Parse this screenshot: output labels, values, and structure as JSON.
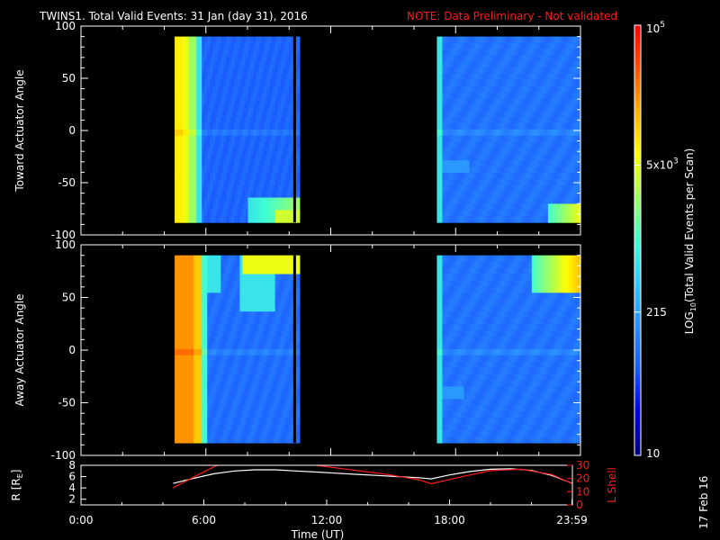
{
  "header": {
    "title": "TWINS1. Total Valid Events: 31 Jan (day  31), 2016",
    "note": "NOTE: Data Preliminary - Not validated",
    "note_color": "#ff1a1a"
  },
  "footer": {
    "date_stamp": "17 Feb 16"
  },
  "chart_data": [
    {
      "type": "heatmap",
      "panel": "toward",
      "ylabel": "Toward Actuator Angle",
      "ylim": [
        -100,
        100
      ],
      "yticks": [
        "100",
        "50",
        "0",
        "-50",
        "-100"
      ],
      "x_hours": [
        0,
        24
      ],
      "data_blocks": [
        {
          "start_hour": 4.5,
          "end_hour": 10.5,
          "gap_hour": 10.2
        },
        {
          "start_hour": 17.1,
          "end_hour": 24.0
        }
      ],
      "y_range_covered": [
        -88,
        90
      ]
    },
    {
      "type": "heatmap",
      "panel": "away",
      "ylabel": "Away Actuator Angle",
      "ylim": [
        -100,
        100
      ],
      "yticks": [
        "100",
        "50",
        "0",
        "-50",
        "-100"
      ],
      "x_hours": [
        0,
        24
      ],
      "data_blocks": [
        {
          "start_hour": 4.5,
          "end_hour": 10.5,
          "gap_hour": 10.2
        },
        {
          "start_hour": 17.1,
          "end_hour": 24.0
        }
      ],
      "y_range_covered": [
        -88,
        90
      ]
    },
    {
      "type": "line",
      "panel": "orbit",
      "ylabel_left": "R [R",
      "ylabel_left_sub": "E",
      "ylabel_left_end": "]",
      "ylabel_right": "L Shell",
      "ylim_left": [
        1,
        8
      ],
      "yticks_left": [
        "8",
        "6",
        "4",
        "2"
      ],
      "ylim_right": [
        0,
        30
      ],
      "yticks_right": [
        "30",
        "20",
        "10",
        "0"
      ],
      "xlabel": "Time (UT)",
      "xticks": [
        "0:00",
        "6:00",
        "12:00",
        "18:00",
        "23:59"
      ],
      "xtick_hours": [
        0,
        6,
        12,
        18,
        23.98
      ],
      "series": [
        {
          "color": "#ffffff",
          "x": [
            4.5,
            5.5,
            6.5,
            7.5,
            8.5,
            9.5,
            10.5,
            11.5,
            12.5,
            13.5,
            14.5,
            15.5,
            16.5,
            17.1,
            18,
            19,
            20,
            21,
            22,
            23,
            24
          ],
          "y": [
            4.8,
            5.7,
            6.5,
            7.0,
            7.2,
            7.2,
            7.0,
            6.8,
            6.6,
            6.4,
            6.2,
            6.0,
            5.8,
            5.6,
            6.3,
            6.9,
            7.3,
            7.4,
            7.1,
            6.2,
            4.8
          ]
        },
        {
          "color": "#ff1a1a",
          "axis": "right",
          "x": [
            4.5,
            5.5,
            6.5,
            7.0
          ],
          "y": [
            13,
            21,
            29,
            32
          ]
        },
        {
          "color": "#ff1a1a",
          "axis": "right",
          "x": [
            11.0,
            12.0,
            13.5,
            15.0,
            16.5,
            17.1,
            18.5,
            20.0,
            21.5,
            23.0,
            24.0
          ],
          "y": [
            31,
            29,
            26,
            23,
            19,
            16,
            21,
            26,
            27,
            23,
            16
          ]
        }
      ]
    }
  ],
  "colorbar": {
    "label_main": "LOG",
    "label_sub": "10",
    "label_rest": "(Total Valid  Events per Scan)",
    "ticks": [
      {
        "base": "10",
        "exp": "5",
        "value": 100000
      },
      {
        "base": "5x10",
        "exp": "3",
        "value": 5000
      },
      {
        "base": "215",
        "exp": "",
        "value": 215
      },
      {
        "base": "10",
        "exp": "",
        "value": 10
      }
    ],
    "min": 10,
    "max": 100000,
    "colors": [
      "#000080",
      "#0000e0",
      "#1a5aff",
      "#2a8cff",
      "#30c8ff",
      "#40ffd0",
      "#a0ff60",
      "#ffff00",
      "#ffb000",
      "#ff5000",
      "#ff0000"
    ]
  }
}
